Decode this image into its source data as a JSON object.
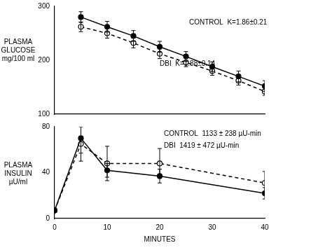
{
  "chart_data": [
    {
      "type": "line",
      "y_label": [
        "PLASMA",
        "GLUCOSE",
        "mg/100 ml"
      ],
      "x": [
        5,
        10,
        15,
        20,
        25,
        30,
        35,
        40
      ],
      "series": [
        {
          "name": "CONTROL",
          "color": "#000000",
          "marker": "filled_circle",
          "line_style": "solid",
          "values": [
            280,
            262,
            245,
            225,
            207,
            188,
            170,
            152
          ],
          "errors": [
            10,
            10,
            10,
            10,
            9,
            9,
            10,
            10
          ]
        },
        {
          "name": "DBI",
          "color": "#000000",
          "marker": "open_circle",
          "line_style": "dashed",
          "values": [
            262,
            250,
            232,
            212,
            196,
            180,
            162,
            142
          ],
          "errors": [
            9,
            9,
            9,
            9,
            8,
            8,
            8,
            7
          ]
        }
      ],
      "annotations": [
        "CONTROL  K=1.86±0.21",
        "DBI  K=1.88±0.14"
      ],
      "xlim": [
        0,
        40
      ],
      "ylim": [
        100,
        300
      ],
      "yticks": [
        100,
        200,
        300
      ],
      "grid": false,
      "tick_labels": "y"
    },
    {
      "type": "line",
      "y_label": [
        "PLASMA",
        "INSULIN",
        "µU/ml"
      ],
      "x_label": "MINUTES",
      "x": [
        0,
        5,
        10,
        20,
        40
      ],
      "series": [
        {
          "name": "CONTROL",
          "color": "#000000",
          "marker": "filled_circle",
          "line_style": "solid",
          "values": [
            7,
            70,
            42,
            37,
            22
          ],
          "errors": [
            1,
            13,
            6,
            6,
            5
          ]
        },
        {
          "name": "DBI",
          "color": "#000000",
          "marker": "open_circle",
          "line_style": "dashed",
          "values": [
            7,
            65,
            48,
            48,
            31
          ],
          "errors": [
            1,
            15,
            15,
            13,
            10
          ]
        }
      ],
      "annotations": [
        "CONTROL  1133 ± 238 µU-min",
        "DBI  1419 ± 472 µU-min"
      ],
      "xlim": [
        0,
        40
      ],
      "xticks": [
        0,
        10,
        20,
        30,
        40
      ],
      "ylim": [
        0,
        80
      ],
      "yticks": [
        0,
        40,
        80
      ],
      "grid": false
    }
  ]
}
